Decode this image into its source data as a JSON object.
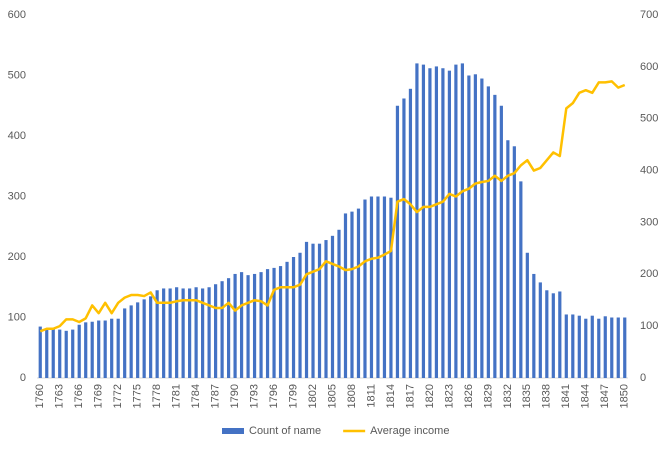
{
  "chart_data": {
    "type": "bar-line",
    "categories": [
      "1760",
      null,
      null,
      "1763",
      null,
      null,
      "1766",
      null,
      null,
      "1769",
      null,
      null,
      "1772",
      null,
      null,
      "1775",
      null,
      null,
      "1778",
      null,
      null,
      "1781",
      null,
      null,
      "1784",
      null,
      null,
      "1787",
      null,
      null,
      "1790",
      null,
      null,
      "1793",
      null,
      null,
      "1796",
      null,
      null,
      "1799",
      null,
      null,
      "1802",
      null,
      null,
      "1805",
      null,
      null,
      "1808",
      null,
      null,
      "1811",
      null,
      null,
      "1814",
      null,
      null,
      "1817",
      null,
      null,
      "1820",
      null,
      null,
      "1823",
      null,
      null,
      "1826",
      null,
      null,
      "1829",
      null,
      null,
      "1832",
      null,
      null,
      "1835",
      null,
      null,
      "1838",
      null,
      null,
      "1841",
      null,
      null,
      "1844",
      null,
      null,
      "1847",
      null,
      null,
      "1850"
    ],
    "series": [
      {
        "name": "Count of name",
        "color": "#4472c4",
        "kind": "bar",
        "values": [
          85,
          80,
          82,
          80,
          78,
          80,
          88,
          92,
          93,
          95,
          95,
          98,
          98,
          115,
          120,
          125,
          130,
          135,
          145,
          148,
          148,
          150,
          148,
          148,
          150,
          148,
          150,
          155,
          160,
          165,
          172,
          175,
          170,
          172,
          175,
          180,
          182,
          185,
          192,
          200,
          207,
          225,
          222,
          222,
          228,
          235,
          245,
          272,
          275,
          280,
          295,
          300,
          300,
          300,
          298,
          450,
          462,
          478,
          520,
          518,
          512,
          515,
          512,
          508,
          518,
          520,
          500,
          502,
          495,
          482,
          468,
          450,
          393,
          383,
          325,
          207,
          172,
          158,
          145,
          140,
          143,
          105,
          105,
          103,
          98,
          103,
          98,
          102,
          100,
          100,
          100
        ]
      },
      {
        "name": "Average income",
        "color": "#ffc000",
        "kind": "line",
        "axis": "y2",
        "values": [
          90,
          95,
          95,
          100,
          113,
          113,
          108,
          115,
          140,
          125,
          145,
          125,
          145,
          155,
          160,
          160,
          158,
          165,
          145,
          145,
          145,
          148,
          150,
          150,
          150,
          145,
          140,
          135,
          135,
          145,
          130,
          140,
          145,
          150,
          148,
          140,
          170,
          175,
          175,
          175,
          180,
          200,
          205,
          210,
          225,
          220,
          215,
          208,
          210,
          215,
          225,
          230,
          232,
          238,
          245,
          340,
          345,
          335,
          320,
          330,
          330,
          335,
          340,
          355,
          350,
          360,
          365,
          375,
          378,
          380,
          390,
          380,
          390,
          395,
          410,
          420,
          400,
          405,
          420,
          435,
          428,
          520,
          530,
          550,
          555,
          550,
          570,
          570,
          572,
          560,
          565
        ]
      }
    ],
    "ylim": [
      0,
      600
    ],
    "yticks": [
      0,
      100,
      200,
      300,
      400,
      500,
      600
    ],
    "y2lim": [
      0,
      700
    ],
    "y2ticks": [
      0,
      100,
      200,
      300,
      400,
      500,
      600,
      700
    ],
    "legend": "bottom"
  }
}
